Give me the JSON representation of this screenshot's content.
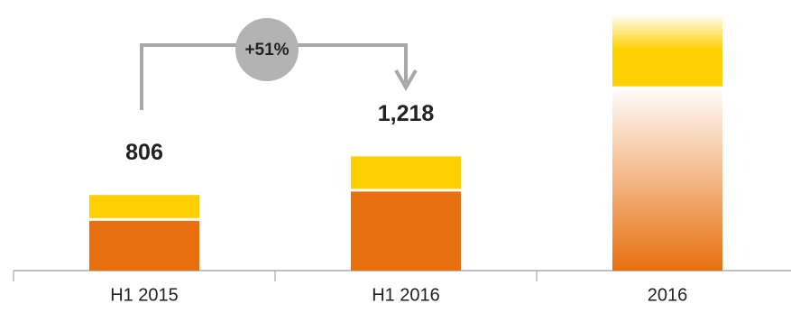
{
  "chart_data": {
    "type": "stacked_bar",
    "categories": [
      "H1 2015",
      "H1 2016",
      "2016"
    ],
    "series": [
      {
        "color": "#e8700f",
        "values": [
          545,
          857,
          1950
        ]
      },
      {
        "color": "#ffd000",
        "values": [
          261,
          361,
          790
        ]
      }
    ],
    "faded": [
      false,
      false,
      true
    ],
    "totals": [
      806,
      1218,
      null
    ],
    "total_labels": [
      "806",
      "1,218",
      null
    ],
    "annotation": "+51%"
  }
}
